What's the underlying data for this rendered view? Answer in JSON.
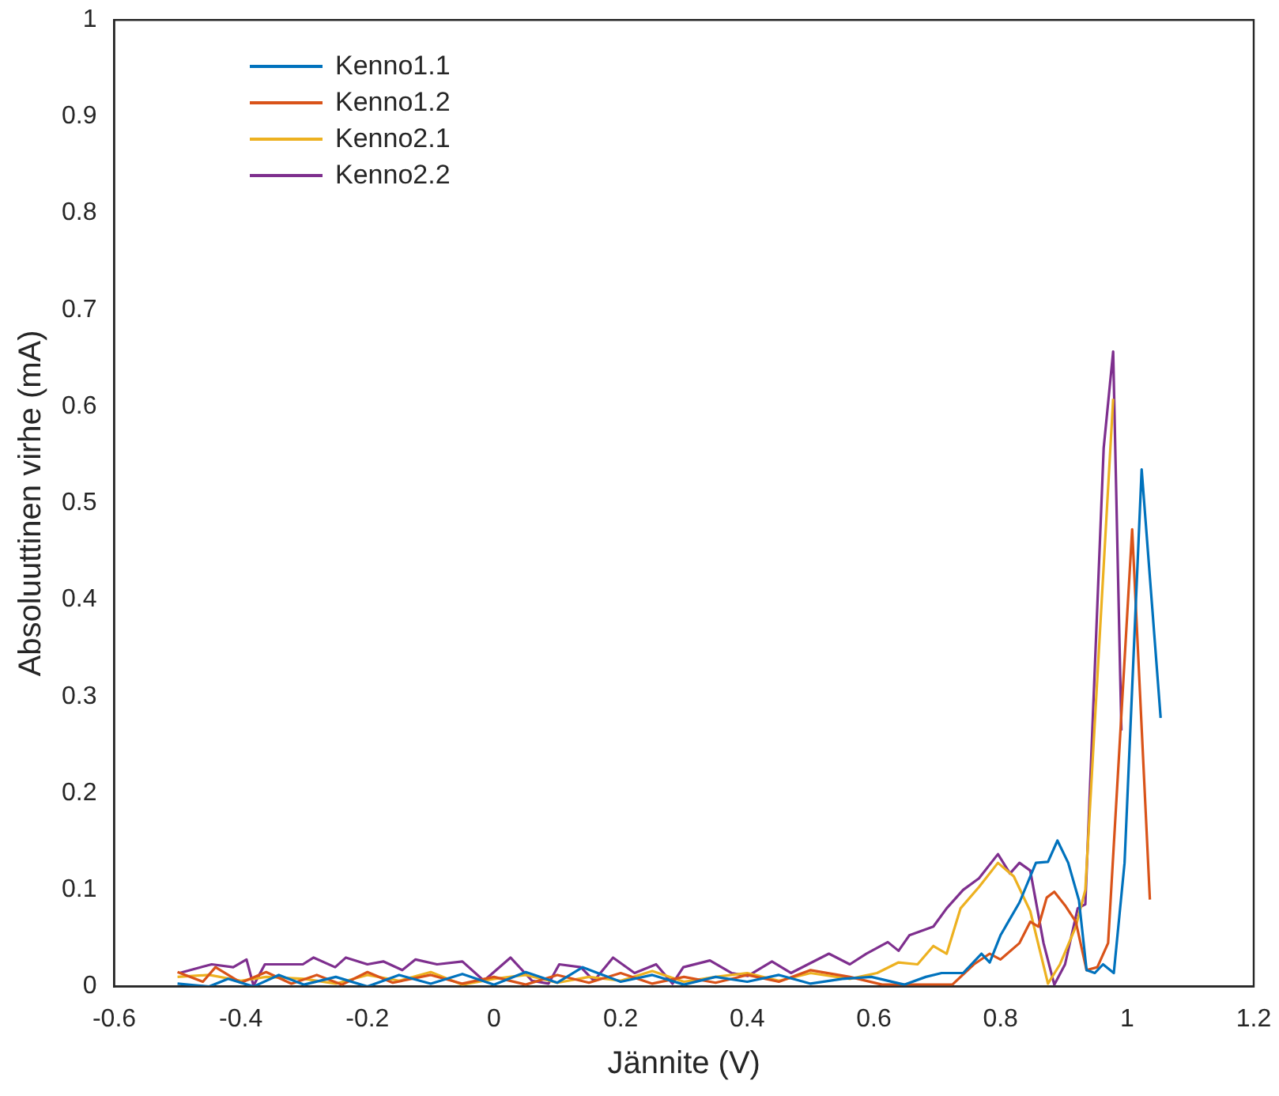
{
  "chart_data": {
    "type": "line",
    "xlabel": "Jännite (V)",
    "ylabel": "Absoluuttinen virhe (mA)",
    "xlim": [
      -0.6,
      1.2
    ],
    "xticks": [
      -0.6,
      -0.4,
      -0.2,
      0,
      0.2,
      0.4,
      0.6,
      0.8,
      1,
      1.2
    ],
    "ylim": [
      0,
      1
    ],
    "yticks": [
      0,
      0.1,
      0.2,
      0.3,
      0.4,
      0.5,
      0.6,
      0.7,
      0.8,
      0.9,
      1
    ],
    "grid": false,
    "legend": "top left",
    "marker": "none",
    "line_style": "solid",
    "series": [
      {
        "name": "Kenno1.1",
        "color": "#0072bd",
        "x": [
          -0.5,
          -0.45,
          -0.42,
          -0.38,
          -0.34,
          -0.3,
          -0.25,
          -0.2,
          -0.15,
          -0.1,
          -0.05,
          0,
          0.05,
          0.1,
          0.14,
          0.2,
          0.25,
          0.3,
          0.35,
          0.4,
          0.45,
          0.5,
          0.55,
          0.596,
          0.648,
          0.682,
          0.707,
          0.741,
          0.77,
          0.783,
          0.8,
          0.83,
          0.856,
          0.875,
          0.89,
          0.907,
          0.924,
          0.936,
          0.949,
          0.962,
          0.979,
          0.996,
          1.023,
          1.053
        ],
        "values": [
          0.003,
          0.0,
          0.008,
          0.0,
          0.012,
          0.002,
          0.01,
          0.0,
          0.012,
          0.003,
          0.013,
          0.002,
          0.015,
          0.004,
          0.02,
          0.005,
          0.012,
          0.002,
          0.01,
          0.005,
          0.012,
          0.003,
          0.008,
          0.01,
          0.002,
          0.01,
          0.014,
          0.014,
          0.034,
          0.025,
          0.053,
          0.087,
          0.128,
          0.129,
          0.151,
          0.128,
          0.089,
          0.017,
          0.014,
          0.023,
          0.014,
          0.128,
          0.535,
          0.278
        ]
      },
      {
        "name": "Kenno1.2",
        "color": "#d95319",
        "x": [
          -0.5,
          -0.46,
          -0.44,
          -0.4,
          -0.36,
          -0.32,
          -0.28,
          -0.24,
          -0.2,
          -0.16,
          -0.1,
          -0.05,
          0,
          0.05,
          0.1,
          0.15,
          0.2,
          0.25,
          0.3,
          0.35,
          0.4,
          0.45,
          0.5,
          0.562,
          0.613,
          0.682,
          0.724,
          0.758,
          0.783,
          0.8,
          0.83,
          0.847,
          0.86,
          0.873,
          0.885,
          0.902,
          0.919,
          0.936,
          0.953,
          0.97,
          1.008,
          1.036
        ],
        "values": [
          0.015,
          0.005,
          0.02,
          0.004,
          0.015,
          0.003,
          0.012,
          0.002,
          0.015,
          0.004,
          0.012,
          0.003,
          0.01,
          0.002,
          0.012,
          0.004,
          0.014,
          0.003,
          0.01,
          0.004,
          0.012,
          0.005,
          0.017,
          0.01,
          0.002,
          0.002,
          0.002,
          0.023,
          0.034,
          0.028,
          0.045,
          0.067,
          0.062,
          0.092,
          0.098,
          0.084,
          0.067,
          0.017,
          0.02,
          0.045,
          0.473,
          0.09
        ]
      },
      {
        "name": "Kenno2.1",
        "color": "#edb120",
        "x": [
          -0.5,
          -0.45,
          -0.4,
          -0.36,
          -0.3,
          -0.25,
          -0.2,
          -0.15,
          -0.1,
          -0.05,
          0,
          0.05,
          0.1,
          0.15,
          0.2,
          0.25,
          0.3,
          0.35,
          0.4,
          0.45,
          0.5,
          0.562,
          0.605,
          0.639,
          0.669,
          0.694,
          0.715,
          0.737,
          0.766,
          0.796,
          0.821,
          0.847,
          0.875,
          0.894,
          0.919,
          0.934,
          0.978
        ],
        "values": [
          0.01,
          0.012,
          0.006,
          0.01,
          0.008,
          0.003,
          0.012,
          0.006,
          0.015,
          0.002,
          0.008,
          0.012,
          0.004,
          0.01,
          0.006,
          0.016,
          0.005,
          0.01,
          0.014,
          0.006,
          0.014,
          0.008,
          0.014,
          0.025,
          0.023,
          0.042,
          0.034,
          0.081,
          0.103,
          0.128,
          0.114,
          0.078,
          0.003,
          0.023,
          0.062,
          0.1,
          0.608
        ]
      },
      {
        "name": "Kenno2.2",
        "color": "#7e2f8e",
        "x": [
          -0.497,
          -0.446,
          -0.412,
          -0.391,
          -0.38,
          -0.362,
          -0.302,
          -0.285,
          -0.251,
          -0.234,
          -0.2,
          -0.175,
          -0.145,
          -0.124,
          -0.09,
          -0.05,
          -0.016,
          0.026,
          0.06,
          0.086,
          0.103,
          0.137,
          0.158,
          0.188,
          0.222,
          0.256,
          0.282,
          0.299,
          0.341,
          0.375,
          0.401,
          0.439,
          0.469,
          0.529,
          0.562,
          0.588,
          0.622,
          0.639,
          0.656,
          0.694,
          0.715,
          0.741,
          0.766,
          0.796,
          0.815,
          0.83,
          0.847,
          0.868,
          0.885,
          0.902,
          0.922,
          0.934,
          0.963,
          0.978,
          0.991
        ],
        "values": [
          0.014,
          0.023,
          0.02,
          0.028,
          0.001,
          0.023,
          0.023,
          0.03,
          0.02,
          0.03,
          0.023,
          0.026,
          0.017,
          0.028,
          0.023,
          0.026,
          0.006,
          0.03,
          0.006,
          0.003,
          0.023,
          0.02,
          0.006,
          0.03,
          0.014,
          0.023,
          0.003,
          0.02,
          0.027,
          0.014,
          0.011,
          0.026,
          0.014,
          0.034,
          0.023,
          0.034,
          0.046,
          0.037,
          0.053,
          0.062,
          0.081,
          0.1,
          0.112,
          0.137,
          0.117,
          0.128,
          0.12,
          0.045,
          0.002,
          0.023,
          0.081,
          0.085,
          0.557,
          0.657,
          0.265
        ]
      }
    ]
  }
}
